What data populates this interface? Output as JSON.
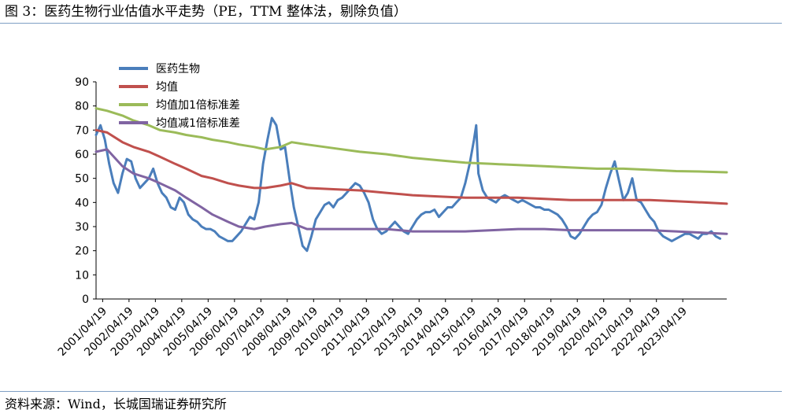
{
  "figure": {
    "title": "图 3：医药生物行业估值水平走势（PE，TTM 整体法，剔除负值）",
    "source": "资料来源：Wind，长城国瑞证券研究所"
  },
  "chart_data": {
    "type": "line",
    "ylim": [
      0,
      90
    ],
    "yticks": [
      0,
      10,
      20,
      30,
      40,
      50,
      60,
      70,
      80,
      90
    ],
    "xlim": [
      "2001-01",
      "2024-12"
    ],
    "xtick_labels": [
      "2001/04/19",
      "2002/04/19",
      "2003/04/19",
      "2004/04/19",
      "2005/04/19",
      "2006/04/19",
      "2007/04/19",
      "2008/04/19",
      "2009/04/19",
      "2010/04/19",
      "2011/04/19",
      "2012/04/19",
      "2013/04/19",
      "2014/04/19",
      "2015/04/19",
      "2016/04/19",
      "2017/04/19",
      "2018/04/19",
      "2019/04/19",
      "2020/04/19",
      "2021/04/19",
      "2022/04/19",
      "2023/04/19"
    ],
    "legend_position": "top-left",
    "grid": false,
    "series": [
      {
        "name": "医药生物",
        "color": "#4a7ebb",
        "x": [
          "2001-01",
          "2001-03",
          "2001-05",
          "2001-07",
          "2001-09",
          "2001-11",
          "2002-01",
          "2002-03",
          "2002-05",
          "2002-07",
          "2002-09",
          "2002-11",
          "2003-01",
          "2003-03",
          "2003-05",
          "2003-07",
          "2003-09",
          "2003-11",
          "2004-01",
          "2004-03",
          "2004-05",
          "2004-07",
          "2004-09",
          "2004-11",
          "2005-01",
          "2005-03",
          "2005-05",
          "2005-07",
          "2005-09",
          "2005-11",
          "2006-01",
          "2006-03",
          "2006-05",
          "2006-07",
          "2006-09",
          "2006-11",
          "2007-01",
          "2007-03",
          "2007-05",
          "2007-07",
          "2007-09",
          "2007-11",
          "2008-01",
          "2008-03",
          "2008-05",
          "2008-07",
          "2008-09",
          "2008-11",
          "2009-01",
          "2009-03",
          "2009-05",
          "2009-07",
          "2009-09",
          "2009-11",
          "2010-01",
          "2010-03",
          "2010-05",
          "2010-07",
          "2010-09",
          "2010-11",
          "2011-01",
          "2011-03",
          "2011-05",
          "2011-07",
          "2011-09",
          "2011-11",
          "2012-01",
          "2012-03",
          "2012-05",
          "2012-07",
          "2012-09",
          "2012-11",
          "2013-01",
          "2013-03",
          "2013-05",
          "2013-07",
          "2013-09",
          "2013-11",
          "2014-01",
          "2014-03",
          "2014-05",
          "2014-07",
          "2014-09",
          "2014-11",
          "2015-01",
          "2015-03",
          "2015-05",
          "2015-06",
          "2015-07",
          "2015-09",
          "2015-11",
          "2016-01",
          "2016-03",
          "2016-05",
          "2016-07",
          "2016-09",
          "2016-11",
          "2017-01",
          "2017-03",
          "2017-05",
          "2017-07",
          "2017-09",
          "2017-11",
          "2018-01",
          "2018-03",
          "2018-05",
          "2018-07",
          "2018-09",
          "2018-11",
          "2019-01",
          "2019-03",
          "2019-05",
          "2019-07",
          "2019-09",
          "2019-11",
          "2020-01",
          "2020-03",
          "2020-05",
          "2020-07",
          "2020-09",
          "2020-11",
          "2021-01",
          "2021-03",
          "2021-05",
          "2021-07",
          "2021-09",
          "2021-11",
          "2022-01",
          "2022-03",
          "2022-05",
          "2022-07",
          "2022-09",
          "2022-11",
          "2023-01",
          "2023-03",
          "2023-05",
          "2023-07",
          "2023-09",
          "2023-11",
          "2024-01",
          "2024-03",
          "2024-05",
          "2024-07",
          "2024-09"
        ],
        "values": [
          68,
          72,
          66,
          56,
          48,
          44,
          52,
          58,
          57,
          50,
          46,
          48,
          50,
          54,
          48,
          44,
          42,
          38,
          37,
          42,
          40,
          35,
          33,
          32,
          30,
          29,
          29,
          28,
          26,
          25,
          24,
          24,
          26,
          28,
          31,
          34,
          33,
          40,
          56,
          66,
          75,
          72,
          62,
          63,
          50,
          38,
          30,
          22,
          20,
          26,
          33,
          36,
          39,
          40,
          38,
          41,
          42,
          44,
          46,
          48,
          47,
          44,
          40,
          33,
          29,
          27,
          28,
          30,
          32,
          30,
          28,
          27,
          30,
          33,
          35,
          36,
          36,
          37,
          34,
          36,
          38,
          38,
          40,
          42,
          48,
          56,
          66,
          72,
          52,
          45,
          42,
          41,
          40,
          42,
          43,
          42,
          41,
          40,
          41,
          40,
          39,
          38,
          38,
          37,
          37,
          36,
          35,
          33,
          30,
          26,
          25,
          27,
          30,
          33,
          35,
          36,
          39,
          46,
          52,
          57,
          49,
          41,
          44,
          50,
          41,
          40,
          37,
          34,
          32,
          28,
          26,
          25,
          24,
          25,
          26,
          27,
          27,
          26,
          25,
          27,
          27,
          28,
          26,
          25
        ],
        "line_width": 3
      },
      {
        "name": "均值",
        "color": "#c0504d",
        "x": [
          "2001-01",
          "2001-06",
          "2002-01",
          "2002-06",
          "2003-01",
          "2003-06",
          "2004-01",
          "2004-06",
          "2005-01",
          "2005-06",
          "2006-01",
          "2006-06",
          "2007-01",
          "2007-06",
          "2008-01",
          "2008-06",
          "2009-01",
          "2010-01",
          "2011-01",
          "2012-01",
          "2013-01",
          "2014-01",
          "2015-01",
          "2016-01",
          "2017-01",
          "2018-01",
          "2019-01",
          "2020-01",
          "2021-01",
          "2022-01",
          "2023-01",
          "2024-01",
          "2024-12"
        ],
        "values": [
          70,
          69,
          65,
          63,
          61,
          59,
          56,
          54,
          51,
          50,
          48,
          47,
          46,
          46,
          47,
          48,
          46,
          45.5,
          45,
          44,
          43,
          42.5,
          42,
          42,
          42,
          41.5,
          41,
          41,
          41,
          41,
          40.5,
          40,
          39.5
        ],
        "line_width": 3
      },
      {
        "name": "均值加1倍标准差",
        "color": "#9bbb59",
        "x": [
          "2001-01",
          "2001-06",
          "2002-01",
          "2002-06",
          "2003-01",
          "2003-06",
          "2004-01",
          "2004-06",
          "2005-01",
          "2005-06",
          "2006-01",
          "2006-06",
          "2007-01",
          "2007-06",
          "2008-01",
          "2008-06",
          "2009-01",
          "2010-01",
          "2011-01",
          "2012-01",
          "2013-01",
          "2014-01",
          "2015-01",
          "2016-01",
          "2017-01",
          "2018-01",
          "2019-01",
          "2020-01",
          "2021-01",
          "2022-01",
          "2023-01",
          "2024-01",
          "2024-12"
        ],
        "values": [
          79,
          78,
          76,
          74,
          72,
          70,
          69,
          68,
          67,
          66,
          65,
          64,
          63,
          62,
          63,
          65,
          64,
          62.5,
          61,
          60,
          58.5,
          57.5,
          56.5,
          56,
          55.5,
          55,
          54.5,
          54,
          54,
          53.5,
          53,
          52.8,
          52.5
        ],
        "line_width": 3
      },
      {
        "name": "均值减1倍标准差",
        "color": "#8064a2",
        "x": [
          "2001-01",
          "2001-06",
          "2002-01",
          "2002-06",
          "2003-01",
          "2003-06",
          "2004-01",
          "2004-06",
          "2005-01",
          "2005-06",
          "2006-01",
          "2006-06",
          "2007-01",
          "2007-06",
          "2008-01",
          "2008-06",
          "2009-01",
          "2010-01",
          "2011-01",
          "2012-01",
          "2013-01",
          "2014-01",
          "2015-01",
          "2016-01",
          "2017-01",
          "2018-01",
          "2019-01",
          "2020-01",
          "2021-01",
          "2022-01",
          "2023-01",
          "2024-01",
          "2024-12"
        ],
        "values": [
          61,
          62,
          55,
          52,
          50,
          48,
          45,
          42,
          38,
          35,
          32,
          30,
          29,
          30,
          31,
          31.5,
          29,
          29,
          29,
          29,
          28,
          28,
          28,
          28.5,
          29,
          29,
          28.5,
          28.5,
          28.5,
          28.5,
          28,
          27.5,
          27
        ],
        "line_width": 3
      }
    ]
  }
}
